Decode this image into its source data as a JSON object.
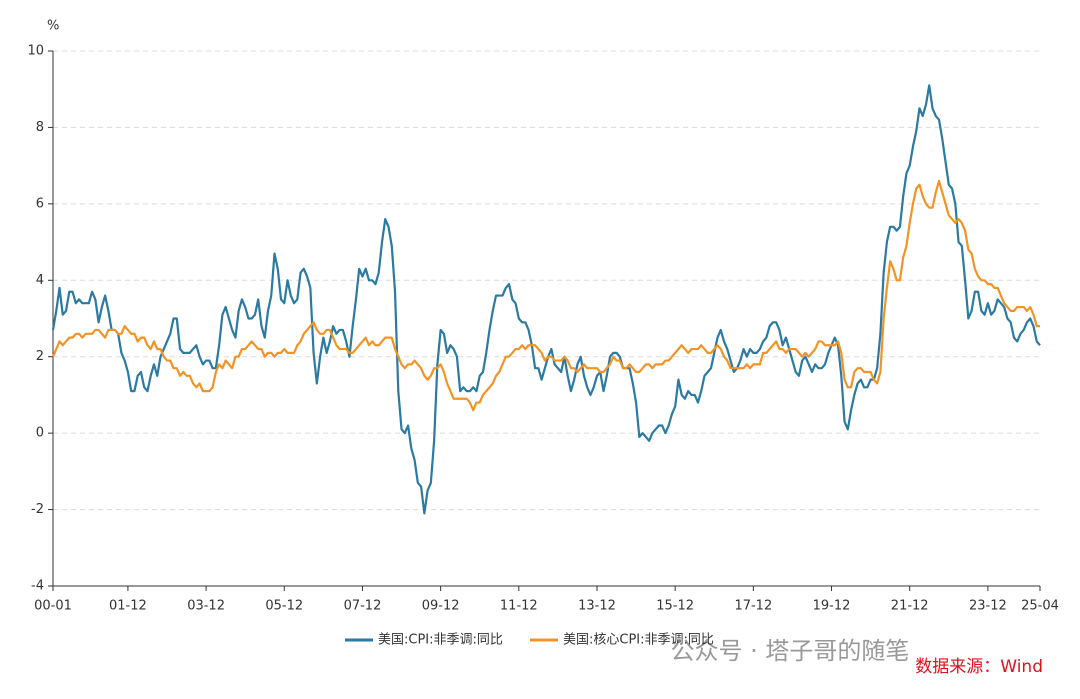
{
  "chart_data": {
    "type": "line",
    "y_unit": "%",
    "categories": [
      "00-01",
      null,
      null,
      null,
      null,
      null,
      null,
      null,
      null,
      null,
      null,
      null,
      null,
      null,
      null,
      null,
      null,
      null,
      null,
      null,
      null,
      null,
      null,
      "01-12",
      null,
      null,
      null,
      null,
      null,
      null,
      null,
      null,
      null,
      null,
      null,
      null,
      null,
      null,
      null,
      null,
      null,
      null,
      null,
      null,
      null,
      null,
      null,
      "03-12",
      null,
      null,
      null,
      null,
      null,
      null,
      null,
      null,
      null,
      null,
      null,
      null,
      null,
      null,
      null,
      null,
      null,
      null,
      null,
      null,
      null,
      null,
      null,
      "05-12",
      null,
      null,
      null,
      null,
      null,
      null,
      null,
      null,
      null,
      null,
      null,
      null,
      null,
      null,
      null,
      null,
      null,
      null,
      null,
      null,
      null,
      null,
      null,
      "07-12",
      null,
      null,
      null,
      null,
      null,
      null,
      null,
      null,
      null,
      null,
      null,
      null,
      null,
      null,
      null,
      null,
      null,
      null,
      null,
      null,
      null,
      null,
      null,
      "09-12",
      null,
      null,
      null,
      null,
      null,
      null,
      null,
      null,
      null,
      null,
      null,
      null,
      null,
      null,
      null,
      null,
      null,
      null,
      null,
      null,
      null,
      null,
      null,
      "11-12",
      null,
      null,
      null,
      null,
      null,
      null,
      null,
      null,
      null,
      null,
      null,
      null,
      null,
      null,
      null,
      null,
      null,
      null,
      null,
      null,
      null,
      null,
      null,
      "13-12",
      null,
      null,
      null,
      null,
      null,
      null,
      null,
      null,
      null,
      null,
      null,
      null,
      null,
      null,
      null,
      null,
      null,
      null,
      null,
      null,
      null,
      null,
      null,
      "15-12",
      null,
      null,
      null,
      null,
      null,
      null,
      null,
      null,
      null,
      null,
      null,
      null,
      null,
      null,
      null,
      null,
      null,
      null,
      null,
      null,
      null,
      null,
      null,
      "17-12",
      null,
      null,
      null,
      null,
      null,
      null,
      null,
      null,
      null,
      null,
      null,
      null,
      null,
      null,
      null,
      null,
      null,
      null,
      null,
      null,
      null,
      null,
      null,
      "19-12",
      null,
      null,
      null,
      null,
      null,
      null,
      null,
      null,
      null,
      null,
      null,
      null,
      null,
      null,
      null,
      null,
      null,
      null,
      null,
      null,
      null,
      null,
      null,
      "21-12",
      null,
      null,
      null,
      null,
      null,
      null,
      null,
      null,
      null,
      null,
      null,
      null,
      null,
      null,
      null,
      null,
      null,
      null,
      null,
      null,
      null,
      null,
      null,
      "23-12",
      null,
      null,
      null,
      null,
      null,
      null,
      null,
      null,
      null,
      null,
      null,
      null,
      null,
      null,
      null,
      "25-04"
    ],
    "series": [
      {
        "name": "美国:CPI:非季调:同比",
        "color": "#2a7aa3",
        "values": [
          2.7,
          3.2,
          3.8,
          3.1,
          3.2,
          3.7,
          3.7,
          3.4,
          3.5,
          3.4,
          3.4,
          3.4,
          3.7,
          3.5,
          2.9,
          3.3,
          3.6,
          3.2,
          2.7,
          2.7,
          2.6,
          2.1,
          1.9,
          1.6,
          1.1,
          1.1,
          1.5,
          1.6,
          1.2,
          1.1,
          1.5,
          1.8,
          1.5,
          2.0,
          2.2,
          2.4,
          2.6,
          3.0,
          3.0,
          2.2,
          2.1,
          2.1,
          2.1,
          2.2,
          2.3,
          2.0,
          1.8,
          1.9,
          1.9,
          1.7,
          1.7,
          2.3,
          3.1,
          3.3,
          3.0,
          2.7,
          2.5,
          3.2,
          3.5,
          3.3,
          3.0,
          3.0,
          3.1,
          3.5,
          2.8,
          2.5,
          3.2,
          3.6,
          4.7,
          4.3,
          3.5,
          3.4,
          4.0,
          3.6,
          3.4,
          3.5,
          4.2,
          4.3,
          4.1,
          3.8,
          2.1,
          1.3,
          2.0,
          2.5,
          2.1,
          2.4,
          2.8,
          2.6,
          2.7,
          2.7,
          2.4,
          2.0,
          2.8,
          3.5,
          4.3,
          4.1,
          4.3,
          4.0,
          4.0,
          3.9,
          4.2,
          5.0,
          5.6,
          5.4,
          4.9,
          3.7,
          1.1,
          0.1,
          0.0,
          0.2,
          -0.4,
          -0.7,
          -1.3,
          -1.4,
          -2.1,
          -1.5,
          -1.3,
          -0.2,
          1.8,
          2.7,
          2.6,
          2.1,
          2.3,
          2.2,
          2.0,
          1.1,
          1.2,
          1.1,
          1.1,
          1.2,
          1.1,
          1.5,
          1.6,
          2.1,
          2.7,
          3.2,
          3.6,
          3.6,
          3.6,
          3.8,
          3.9,
          3.5,
          3.4,
          3.0,
          2.9,
          2.9,
          2.7,
          2.3,
          1.7,
          1.7,
          1.4,
          1.7,
          2.0,
          2.2,
          1.8,
          1.7,
          1.6,
          2.0,
          1.5,
          1.1,
          1.4,
          1.8,
          2.0,
          1.5,
          1.2,
          1.0,
          1.2,
          1.5,
          1.6,
          1.1,
          1.5,
          2.0,
          2.1,
          2.1,
          2.0,
          1.7,
          1.7,
          1.7,
          1.3,
          0.8,
          -0.1,
          0.0,
          -0.1,
          -0.2,
          0.0,
          0.1,
          0.2,
          0.2,
          0.0,
          0.2,
          0.5,
          0.7,
          1.4,
          1.0,
          0.9,
          1.1,
          1.0,
          1.0,
          0.8,
          1.1,
          1.5,
          1.6,
          1.7,
          2.1,
          2.5,
          2.7,
          2.4,
          2.2,
          1.9,
          1.6,
          1.7,
          1.9,
          2.2,
          2.0,
          2.2,
          2.1,
          2.1,
          2.2,
          2.4,
          2.5,
          2.8,
          2.9,
          2.9,
          2.7,
          2.3,
          2.5,
          2.2,
          1.9,
          1.6,
          1.5,
          1.9,
          2.0,
          1.8,
          1.6,
          1.8,
          1.7,
          1.7,
          1.8,
          2.1,
          2.3,
          2.5,
          2.3,
          1.5,
          0.3,
          0.1,
          0.6,
          1.0,
          1.3,
          1.4,
          1.2,
          1.2,
          1.4,
          1.4,
          1.7,
          2.6,
          4.2,
          5.0,
          5.4,
          5.4,
          5.3,
          5.4,
          6.2,
          6.8,
          7.0,
          7.5,
          7.9,
          8.5,
          8.3,
          8.6,
          9.1,
          8.5,
          8.3,
          8.2,
          7.7,
          7.1,
          6.5,
          6.4,
          6.0,
          5.0,
          4.9,
          4.0,
          3.0,
          3.2,
          3.7,
          3.7,
          3.2,
          3.1,
          3.4,
          3.1,
          3.2,
          3.5,
          3.4,
          3.3,
          3.0,
          2.9,
          2.5,
          2.4,
          2.6,
          2.7,
          2.9,
          3.0,
          2.8,
          2.4,
          2.3
        ]
      },
      {
        "name": "美国:核心CPI:非季调:同比",
        "color": "#f39325",
        "values": [
          2.0,
          2.2,
          2.4,
          2.3,
          2.4,
          2.5,
          2.5,
          2.6,
          2.6,
          2.5,
          2.6,
          2.6,
          2.6,
          2.7,
          2.7,
          2.6,
          2.5,
          2.7,
          2.7,
          2.7,
          2.6,
          2.6,
          2.8,
          2.7,
          2.6,
          2.6,
          2.4,
          2.5,
          2.5,
          2.3,
          2.2,
          2.4,
          2.2,
          2.2,
          2.0,
          1.9,
          1.9,
          1.7,
          1.7,
          1.5,
          1.6,
          1.5,
          1.5,
          1.3,
          1.2,
          1.3,
          1.1,
          1.1,
          1.1,
          1.2,
          1.6,
          1.8,
          1.7,
          1.9,
          1.8,
          1.7,
          2.0,
          2.0,
          2.2,
          2.2,
          2.3,
          2.4,
          2.3,
          2.2,
          2.2,
          2.0,
          2.1,
          2.1,
          2.0,
          2.1,
          2.1,
          2.2,
          2.1,
          2.1,
          2.1,
          2.3,
          2.4,
          2.6,
          2.7,
          2.8,
          2.9,
          2.7,
          2.6,
          2.6,
          2.7,
          2.7,
          2.5,
          2.3,
          2.2,
          2.2,
          2.2,
          2.1,
          2.1,
          2.2,
          2.3,
          2.4,
          2.5,
          2.3,
          2.4,
          2.3,
          2.3,
          2.4,
          2.5,
          2.5,
          2.5,
          2.2,
          2.0,
          1.8,
          1.7,
          1.8,
          1.8,
          1.9,
          1.8,
          1.7,
          1.5,
          1.4,
          1.5,
          1.7,
          1.7,
          1.8,
          1.6,
          1.3,
          1.1,
          0.9,
          0.9,
          0.9,
          0.9,
          0.9,
          0.8,
          0.6,
          0.8,
          0.8,
          1.0,
          1.1,
          1.2,
          1.3,
          1.5,
          1.6,
          1.8,
          2.0,
          2.0,
          2.1,
          2.2,
          2.2,
          2.3,
          2.2,
          2.3,
          2.3,
          2.3,
          2.2,
          2.1,
          1.9,
          2.0,
          2.0,
          1.9,
          1.9,
          1.9,
          2.0,
          1.9,
          1.7,
          1.7,
          1.6,
          1.7,
          1.8,
          1.7,
          1.7,
          1.7,
          1.7,
          1.6,
          1.6,
          1.7,
          1.8,
          2.0,
          1.9,
          1.9,
          1.7,
          1.7,
          1.8,
          1.7,
          1.6,
          1.6,
          1.7,
          1.8,
          1.8,
          1.7,
          1.8,
          1.8,
          1.8,
          1.9,
          1.9,
          2.0,
          2.1,
          2.2,
          2.3,
          2.2,
          2.1,
          2.2,
          2.2,
          2.2,
          2.3,
          2.2,
          2.1,
          2.1,
          2.2,
          2.3,
          2.2,
          2.0,
          1.9,
          1.7,
          1.7,
          1.7,
          1.7,
          1.7,
          1.8,
          1.7,
          1.8,
          1.8,
          1.8,
          2.1,
          2.1,
          2.2,
          2.3,
          2.4,
          2.2,
          2.2,
          2.1,
          2.2,
          2.2,
          2.2,
          2.1,
          2.0,
          2.1,
          2.0,
          2.1,
          2.2,
          2.4,
          2.4,
          2.3,
          2.3,
          2.3,
          2.3,
          2.4,
          2.1,
          1.4,
          1.2,
          1.2,
          1.6,
          1.7,
          1.7,
          1.6,
          1.6,
          1.6,
          1.4,
          1.3,
          1.6,
          3.0,
          3.8,
          4.5,
          4.3,
          4.0,
          4.0,
          4.6,
          4.9,
          5.5,
          6.0,
          6.4,
          6.5,
          6.2,
          6.0,
          5.9,
          5.9,
          6.3,
          6.6,
          6.3,
          6.0,
          5.7,
          5.6,
          5.5,
          5.6,
          5.5,
          5.3,
          4.8,
          4.7,
          4.3,
          4.1,
          4.0,
          4.0,
          3.9,
          3.9,
          3.8,
          3.8,
          3.6,
          3.4,
          3.3,
          3.2,
          3.2,
          3.3,
          3.3,
          3.3,
          3.2,
          3.3,
          3.1,
          2.8,
          2.8
        ]
      }
    ],
    "ylim": [
      -4,
      10
    ],
    "yticks": [
      -4,
      -2,
      0,
      2,
      4,
      6,
      8,
      10
    ],
    "grid": true,
    "legend": "bottom",
    "watermark": "公众号 · 塔子哥的随笔",
    "source": "数据来源：Wind"
  }
}
